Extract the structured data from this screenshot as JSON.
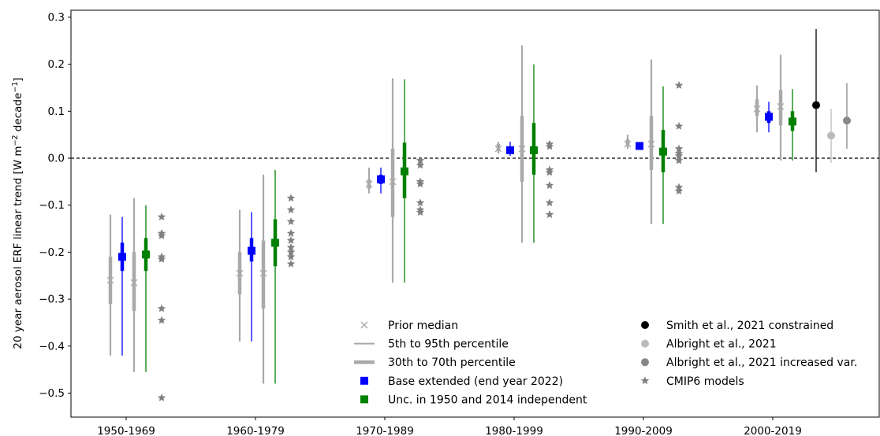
{
  "chart_data": {
    "type": "scatter",
    "ylabel_main": "20 year aerosol ERF linear trend [W m",
    "ylabel_sup1": "−2",
    "ylabel_mid": " decade",
    "ylabel_sup2": "−1",
    "ylabel_end": "]",
    "ylim": [
      -0.55,
      0.32
    ],
    "yticks": [
      0.3,
      0.2,
      0.1,
      0.0,
      -0.1,
      -0.2,
      -0.3,
      -0.4,
      -0.5
    ],
    "ytick_labels": [
      "0.3",
      "0.2",
      "0.1",
      "0.0",
      "−0.1",
      "−0.2",
      "−0.3",
      "−0.4",
      "−0.5"
    ],
    "categories": [
      "1950-1969",
      "1960-1979",
      "1970-1989",
      "1980-1999",
      "1990-2009",
      "2000-2019"
    ],
    "zero_line": true,
    "colors": {
      "prior": "#a9a9a9",
      "base": "#0000ff",
      "unc": "#008000",
      "smith": "#000000",
      "albright": "#bbbbbb",
      "albright_var": "#888888",
      "cmip6": "#808080"
    },
    "series": [
      {
        "name": "Prior median",
        "offset": -0.2,
        "values": [
          {
            "median": -0.26,
            "p5": -0.42,
            "p95": -0.12,
            "p30": -0.31,
            "p70": -0.21
          },
          {
            "median": -0.245,
            "p5": -0.39,
            "p95": -0.11,
            "p30": -0.29,
            "p70": -0.2
          },
          {
            "median": -0.055,
            "p5": -0.075,
            "p95": -0.02,
            "p30": -0.065,
            "p70": -0.045
          },
          {
            "median": 0.02,
            "p5": 0.01,
            "p95": 0.035,
            "p30": 0.015,
            "p70": 0.03
          },
          {
            "median": 0.03,
            "p5": 0.02,
            "p95": 0.05,
            "p30": 0.025,
            "p70": 0.04
          },
          {
            "median": 0.105,
            "p5": 0.055,
            "p95": 0.155,
            "p30": 0.09,
            "p70": 0.125
          }
        ]
      },
      {
        "name": "Base extended (end year 2022)",
        "offset": -0.05,
        "values": [
          {
            "median": -0.21,
            "p5": -0.42,
            "p95": -0.125,
            "p30": -0.24,
            "p70": -0.18
          },
          {
            "median": -0.197,
            "p5": -0.39,
            "p95": -0.115,
            "p30": -0.22,
            "p70": -0.17
          },
          {
            "median": -0.045,
            "p5": -0.075,
            "p95": -0.02,
            "p30": -0.055,
            "p70": -0.035
          },
          {
            "median": 0.017,
            "p5": 0.005,
            "p95": 0.035,
            "p30": 0.01,
            "p70": 0.025
          },
          {
            "median": 0.026,
            "p5": 0.02,
            "p95": 0.032,
            "p30": 0.022,
            "p70": 0.03
          },
          {
            "median": 0.088,
            "p5": 0.055,
            "p95": 0.12,
            "p30": 0.075,
            "p70": 0.1
          }
        ]
      },
      {
        "name": "Prior median (unc.)",
        "offset": 0.1,
        "values": [
          {
            "median": -0.265,
            "p5": -0.455,
            "p95": -0.085,
            "p30": -0.325,
            "p70": -0.2
          },
          {
            "median": -0.245,
            "p5": -0.48,
            "p95": -0.035,
            "p30": -0.32,
            "p70": -0.175
          },
          {
            "median": -0.05,
            "p5": -0.265,
            "p95": 0.17,
            "p30": -0.125,
            "p70": 0.02
          },
          {
            "median": 0.02,
            "p5": -0.18,
            "p95": 0.24,
            "p30": -0.05,
            "p70": 0.09
          },
          {
            "median": 0.03,
            "p5": -0.14,
            "p95": 0.21,
            "p30": -0.025,
            "p70": 0.09
          },
          {
            "median": 0.11,
            "p5": -0.005,
            "p95": 0.22,
            "p30": 0.07,
            "p70": 0.145
          }
        ]
      },
      {
        "name": "Unc. in 1950 and 2014 independent",
        "offset": 0.25,
        "values": [
          {
            "median": -0.205,
            "p5": -0.455,
            "p95": -0.1,
            "p30": -0.24,
            "p70": -0.17
          },
          {
            "median": -0.18,
            "p5": -0.48,
            "p95": -0.025,
            "p30": -0.23,
            "p70": -0.13
          },
          {
            "median": -0.028,
            "p5": -0.265,
            "p95": 0.168,
            "p30": -0.085,
            "p70": 0.033
          },
          {
            "median": 0.017,
            "p5": -0.18,
            "p95": 0.2,
            "p30": -0.035,
            "p70": 0.075
          },
          {
            "median": 0.014,
            "p5": -0.14,
            "p95": 0.153,
            "p30": -0.03,
            "p70": 0.06
          },
          {
            "median": 0.078,
            "p5": -0.005,
            "p95": 0.147,
            "p30": 0.058,
            "p70": 0.1
          }
        ]
      }
    ],
    "cmip6": {
      "name": "CMIP6 models",
      "offset": 0.45,
      "values": [
        [
          -0.125,
          -0.16,
          -0.165,
          -0.21,
          -0.215,
          -0.32,
          -0.345,
          -0.51
        ],
        [
          -0.085,
          -0.11,
          -0.135,
          -0.16,
          -0.175,
          -0.19,
          -0.2,
          -0.21,
          -0.225
        ],
        [
          -0.005,
          -0.015,
          -0.05,
          -0.055,
          -0.095,
          -0.11,
          -0.115
        ],
        [
          0.03,
          0.025,
          -0.025,
          -0.03,
          -0.058,
          -0.095,
          -0.12
        ],
        [
          0.155,
          0.068,
          0.02,
          0.01,
          0.005,
          -0.005,
          -0.062,
          -0.07
        ],
        []
      ]
    },
    "extra_2000_2019": [
      {
        "name": "Smith et al., 2021 constrained",
        "offset": 0.55,
        "median": 0.113,
        "p5": -0.03,
        "p95": 0.275,
        "color_key": "smith"
      },
      {
        "name": "Albright et al., 2021",
        "offset": 0.74,
        "median": 0.048,
        "p5": -0.01,
        "p95": 0.105,
        "color_key": "albright"
      },
      {
        "name": "Albright et al., 2021 increased var.",
        "offset": 0.94,
        "median": 0.08,
        "p5": 0.02,
        "p95": 0.16,
        "color_key": "albright_var"
      }
    ],
    "legend": {
      "placement": "bottom-center",
      "left": [
        {
          "label": "Prior median",
          "marker": "x"
        },
        {
          "label": "5th to 95th percentile",
          "marker": "thin-line"
        },
        {
          "label": "30th to 70th percentile",
          "marker": "thick-line"
        },
        {
          "label": "Base extended (end year 2022)",
          "marker": "blue-square"
        },
        {
          "label": "Unc. in 1950 and 2014 independent",
          "marker": "green-square"
        }
      ],
      "right": [
        {
          "label": "Smith et al., 2021 constrained",
          "marker": "black-dot"
        },
        {
          "label": "Albright et al., 2021",
          "marker": "lightgray-dot"
        },
        {
          "label": "Albright et al., 2021 increased var.",
          "marker": "gray-dot"
        },
        {
          "label": "CMIP6 models",
          "marker": "star"
        }
      ]
    }
  }
}
